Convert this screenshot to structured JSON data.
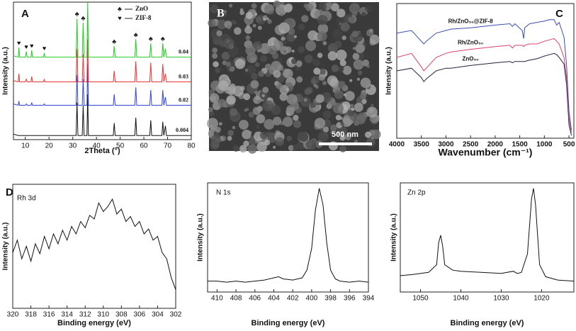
{
  "chart_data": [
    {
      "type": "line",
      "panel_label": "A",
      "xlabel": "2Theta (°)",
      "ylabel": "Intensity (a.u.)",
      "xlim": [
        5,
        80
      ],
      "xticks": [
        10,
        20,
        30,
        40,
        50,
        60,
        70,
        80
      ],
      "ylim": [
        0,
        100
      ],
      "x": [
        5,
        7,
        7.3,
        7.6,
        10,
        10.4,
        10.8,
        12.4,
        12.7,
        13,
        17.7,
        18,
        18.3,
        25,
        31.4,
        31.8,
        32.2,
        34,
        34.4,
        34.8,
        36,
        36.3,
        36.6,
        47.1,
        47.5,
        47.9,
        56.2,
        56.6,
        57,
        62.5,
        62.9,
        63.3,
        67.6,
        68,
        68.4,
        69.1,
        69.5,
        80
      ],
      "series": [
        {
          "name": "0.004",
          "color": "#111111",
          "values": [
            4,
            3,
            3,
            3,
            3,
            3,
            3,
            3,
            3,
            3,
            3,
            3,
            3,
            3,
            3,
            27,
            3,
            3,
            25,
            3,
            3,
            33,
            3,
            3,
            12,
            3,
            3,
            16,
            3,
            3,
            14,
            3,
            3,
            13,
            3,
            10,
            3,
            3
          ]
        },
        {
          "name": "0.02",
          "color": "#3344dd",
          "values": [
            26,
            25,
            28,
            25,
            25,
            26,
            25,
            25,
            27,
            25,
            25,
            26,
            25,
            25,
            25,
            47,
            25,
            25,
            44,
            25,
            25,
            55,
            25,
            25,
            33,
            25,
            25,
            38,
            25,
            25,
            36,
            25,
            25,
            36,
            25,
            31,
            25,
            25
          ]
        },
        {
          "name": "0.03",
          "color": "#ee3333",
          "values": [
            43,
            42,
            48,
            42,
            42,
            44,
            42,
            42,
            46,
            42,
            42,
            44,
            42,
            42,
            42,
            66,
            42,
            42,
            62,
            42,
            42,
            73,
            42,
            42,
            50,
            42,
            42,
            57,
            42,
            42,
            56,
            42,
            42,
            55,
            42,
            48,
            42,
            42
          ]
        },
        {
          "name": "0.04",
          "color": "#22cc22",
          "values": [
            61,
            60,
            67,
            60,
            60,
            64,
            60,
            60,
            65,
            60,
            60,
            63,
            60,
            60,
            60,
            88,
            60,
            60,
            85,
            60,
            60,
            100,
            60,
            60,
            68,
            60,
            60,
            73,
            60,
            60,
            70,
            60,
            60,
            70,
            60,
            66,
            60,
            60
          ]
        }
      ],
      "legend": [
        {
          "symbol": "♣",
          "label": "ZnO"
        },
        {
          "symbol": "♥",
          "label": "ZIF-8"
        }
      ],
      "annotations": [
        {
          "text": "♥",
          "x": 7.3
        },
        {
          "text": "♥",
          "x": 10.4
        },
        {
          "text": "♥",
          "x": 12.7
        },
        {
          "text": "♥",
          "x": 18
        },
        {
          "text": "♣",
          "x": 31.8
        },
        {
          "text": "♣",
          "x": 34.4
        },
        {
          "text": "♣",
          "x": 36.3
        },
        {
          "text": "♣",
          "x": 47.5
        },
        {
          "text": "♣",
          "x": 56.6
        },
        {
          "text": "♣",
          "x": 62.9
        },
        {
          "text": "♣",
          "x": 68
        }
      ]
    },
    {
      "type": "line",
      "panel_label": "C",
      "xlabel": "Wavenumber (cm⁻¹)",
      "ylabel": "Intensity (a.u.)",
      "xlim": [
        4000,
        400
      ],
      "xticks": [
        4000,
        3500,
        3000,
        2500,
        2000,
        1500,
        1000,
        500
      ],
      "ylim": [
        0,
        100
      ],
      "x": [
        4000,
        3700,
        3500,
        3450,
        3400,
        3200,
        3000,
        2900,
        2500,
        2000,
        1700,
        1650,
        1600,
        1450,
        1420,
        1400,
        1300,
        1150,
        1000,
        900,
        800,
        750,
        700,
        600,
        550,
        500,
        450
      ],
      "series": [
        {
          "name": "ZnO₅₀",
          "color": "#222244",
          "values": [
            50,
            52,
            45,
            42,
            44,
            50,
            52,
            52,
            54,
            56,
            57,
            56,
            57,
            57,
            57,
            57,
            58,
            59,
            61,
            62,
            63,
            62,
            60,
            55,
            40,
            10,
            2
          ]
        },
        {
          "name": "Rh/ZnO₅₀",
          "color": "#e0406a",
          "values": [
            60,
            63,
            53,
            50,
            52,
            60,
            63,
            64,
            66,
            68,
            69,
            67,
            69,
            69,
            68,
            69,
            70,
            70,
            72,
            73,
            74,
            72,
            70,
            60,
            45,
            15,
            4
          ]
        },
        {
          "name": "Rh/ZnO₅₀@ZIF-8",
          "color": "#3a4fb0",
          "values": [
            78,
            80,
            72,
            70,
            72,
            78,
            80,
            81,
            82,
            84,
            85,
            83,
            85,
            80,
            74,
            82,
            85,
            86,
            87,
            88,
            88,
            84,
            86,
            75,
            55,
            20,
            6
          ]
        }
      ]
    },
    {
      "type": "line",
      "panel_label": "D",
      "title": "Rh 3d",
      "xlabel": "Binding energy (eV)",
      "ylabel": "Intensity (a.u.)",
      "xlim": [
        320,
        302
      ],
      "xticks": [
        320,
        318,
        316,
        314,
        312,
        310,
        308,
        306,
        304,
        302
      ],
      "ylim": [
        0,
        100
      ],
      "x": [
        320,
        319.5,
        319,
        318.5,
        318,
        317.5,
        317,
        316.5,
        316,
        315.5,
        315,
        314.5,
        314,
        313.5,
        313,
        312.5,
        312,
        311.5,
        311,
        310.5,
        310,
        309.5,
        309,
        308.5,
        308,
        307.5,
        307,
        306.5,
        306,
        305.5,
        305,
        304.5,
        304,
        303.5,
        303,
        302.5,
        302
      ],
      "series": [
        {
          "color": "#111111",
          "values": [
            45,
            55,
            40,
            50,
            38,
            52,
            44,
            58,
            48,
            60,
            52,
            63,
            55,
            66,
            60,
            70,
            65,
            75,
            72,
            85,
            78,
            82,
            88,
            76,
            80,
            70,
            74,
            66,
            70,
            60,
            64,
            55,
            58,
            45,
            40,
            25,
            15
          ]
        }
      ]
    },
    {
      "type": "line",
      "title": "N 1s",
      "xlabel": "Binding energy (eV)",
      "ylabel": "Intensity (a.u.)",
      "xlim": [
        411,
        394
      ],
      "xticks": [
        410,
        408,
        406,
        404,
        402,
        400,
        398,
        396,
        394
      ],
      "ylim": [
        0,
        100
      ],
      "x": [
        411,
        410,
        409,
        408,
        407,
        406,
        405,
        404,
        403.5,
        403,
        402,
        401,
        400.5,
        400,
        399.6,
        399.2,
        398.8,
        398.4,
        398,
        397.5,
        397,
        396,
        395,
        394
      ],
      "series": [
        {
          "color": "#111111",
          "values": [
            10,
            10,
            9,
            10,
            9,
            10,
            11,
            13,
            14,
            12,
            11,
            13,
            20,
            40,
            75,
            95,
            80,
            45,
            20,
            12,
            10,
            9,
            10,
            9
          ]
        }
      ]
    },
    {
      "type": "line",
      "title": "Zn 2p",
      "xlabel": "Binding energy (eV)",
      "ylabel": "Intensity (a.u.)",
      "xlim": [
        1055,
        1012
      ],
      "xticks": [
        1050,
        1040,
        1030,
        1020
      ],
      "ylim": [
        0,
        100
      ],
      "x": [
        1055,
        1052,
        1050,
        1048,
        1046,
        1045.5,
        1045,
        1044.5,
        1044,
        1042,
        1040,
        1035,
        1030,
        1027,
        1026,
        1025,
        1023.5,
        1022.5,
        1022,
        1021.5,
        1020.5,
        1019,
        1016,
        1012
      ],
      "series": [
        {
          "color": "#111111",
          "values": [
            15,
            16,
            17,
            18,
            25,
            45,
            52,
            42,
            25,
            20,
            19,
            18,
            17,
            19,
            17,
            18,
            35,
            85,
            95,
            80,
            25,
            14,
            11,
            10
          ]
        }
      ]
    }
  ],
  "image": {
    "panel_label": "B",
    "scale_bar": "500 nm"
  }
}
